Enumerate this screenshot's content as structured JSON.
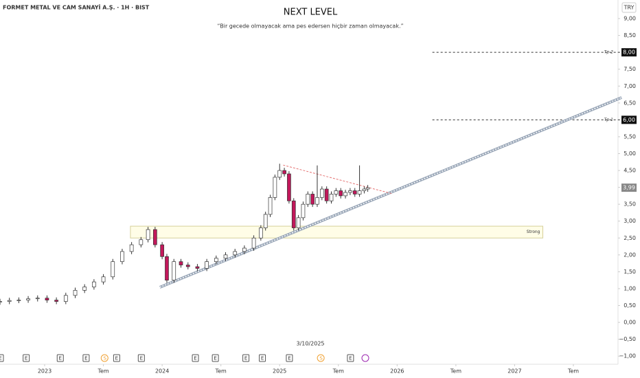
{
  "chart_data": {
    "type": "candlestick",
    "header": "FORMET METAL VE CAM SANAYİ A.Ş. · 1H · BIST",
    "title": "NEXT LEVEL",
    "subtitle": "“Bir gecede olmayacak ama pes edersen hiçbir zaman olmayacak.”",
    "currency": "TRY",
    "cursor_date": "3/10/2025",
    "up_color": "#ffffff",
    "down_color": "#c2185b",
    "edge_color": "#333333",
    "xlim": [
      2022.62,
      2027.88
    ],
    "ylim": [
      -1.24,
      9.55
    ],
    "xticks": [
      {
        "value": 2023,
        "label": "2023"
      },
      {
        "value": 2023.5,
        "label": "Tem"
      },
      {
        "value": 2024,
        "label": "2024"
      },
      {
        "value": 2024.5,
        "label": "Tem"
      },
      {
        "value": 2025,
        "label": "2025"
      },
      {
        "value": 2025.5,
        "label": "Tem"
      },
      {
        "value": 2026,
        "label": "2026"
      },
      {
        "value": 2026.5,
        "label": "Tem"
      },
      {
        "value": 2027,
        "label": "2027"
      },
      {
        "value": 2027.5,
        "label": "Tem"
      }
    ],
    "yticks": [
      {
        "value": 9,
        "label": "9,00"
      },
      {
        "value": 8.5,
        "label": "8,50"
      },
      {
        "value": 8,
        "label": "8,00"
      },
      {
        "value": 7.5,
        "label": "7,50"
      },
      {
        "value": 7,
        "label": "7,00"
      },
      {
        "value": 6.5,
        "label": "6,50"
      },
      {
        "value": 6,
        "label": "6,00"
      },
      {
        "value": 5.5,
        "label": "5,50"
      },
      {
        "value": 5,
        "label": "5,00"
      },
      {
        "value": 4.5,
        "label": "4,50"
      },
      {
        "value": 4,
        "label": "4,00"
      },
      {
        "value": 3.5,
        "label": "3,50"
      },
      {
        "value": 3,
        "label": "3,00"
      },
      {
        "value": 2.5,
        "label": "2,50"
      },
      {
        "value": 2,
        "label": "2,00"
      },
      {
        "value": 1.5,
        "label": "1,50"
      },
      {
        "value": 1,
        "label": "1,00"
      },
      {
        "value": 0.5,
        "label": "0,50"
      },
      {
        "value": 0,
        "label": "0,00"
      },
      {
        "value": -0.5,
        "label": "−0,50"
      },
      {
        "value": -1,
        "label": "−1,00"
      }
    ],
    "x": [
      2022.62,
      2022.7,
      2022.78,
      2022.86,
      2022.94,
      2023.02,
      2023.1,
      2023.18,
      2023.26,
      2023.34,
      2023.42,
      2023.5,
      2023.58,
      2023.66,
      2023.74,
      2023.82,
      2023.88,
      2023.94,
      2024.0,
      2024.04,
      2024.1,
      2024.16,
      2024.22,
      2024.3,
      2024.38,
      2024.46,
      2024.54,
      2024.62,
      2024.7,
      2024.78,
      2024.84,
      2024.88,
      2024.92,
      2024.96,
      2025.0,
      2025.04,
      2025.08,
      2025.12,
      2025.16,
      2025.2,
      2025.24,
      2025.28,
      2025.32,
      2025.36,
      2025.4,
      2025.44,
      2025.48,
      2025.52,
      2025.56,
      2025.6,
      2025.64,
      2025.68,
      2025.72,
      2025.75
    ],
    "open": [
      0.6,
      0.62,
      0.65,
      0.66,
      0.7,
      0.72,
      0.66,
      0.62,
      0.8,
      0.95,
      1.05,
      1.2,
      1.35,
      1.8,
      2.1,
      2.3,
      2.45,
      2.75,
      2.3,
      1.95,
      1.25,
      1.8,
      1.7,
      1.65,
      1.6,
      1.8,
      1.9,
      2.0,
      2.1,
      2.2,
      2.5,
      2.8,
      3.2,
      3.7,
      4.3,
      4.5,
      4.4,
      3.6,
      2.8,
      3.1,
      3.5,
      3.8,
      3.5,
      3.7,
      3.95,
      3.6,
      3.8,
      3.9,
      3.75,
      3.85,
      3.9,
      3.8,
      3.9,
      3.95
    ],
    "high": [
      0.7,
      0.73,
      0.74,
      0.78,
      0.8,
      0.8,
      0.74,
      0.88,
      1.03,
      1.13,
      1.28,
      1.43,
      1.88,
      2.18,
      2.38,
      2.53,
      2.83,
      2.83,
      2.38,
      2.03,
      1.88,
      1.88,
      1.78,
      1.73,
      1.88,
      1.98,
      2.08,
      2.18,
      2.28,
      2.58,
      2.88,
      3.28,
      3.78,
      4.38,
      4.7,
      4.58,
      4.48,
      3.68,
      3.18,
      3.58,
      3.88,
      3.88,
      4.65,
      4.03,
      4.03,
      3.88,
      3.98,
      3.98,
      3.93,
      3.98,
      3.98,
      4.65,
      4.03,
      4.07
    ],
    "low": [
      0.52,
      0.54,
      0.57,
      0.58,
      0.62,
      0.58,
      0.54,
      0.54,
      0.72,
      0.87,
      0.97,
      1.12,
      1.27,
      1.72,
      2.02,
      2.22,
      2.37,
      2.22,
      1.87,
      1.17,
      1.17,
      1.62,
      1.57,
      1.52,
      1.52,
      1.72,
      1.82,
      1.92,
      2.02,
      2.12,
      2.42,
      2.72,
      3.12,
      3.62,
      4.22,
      4.32,
      3.52,
      2.72,
      2.72,
      3.02,
      3.42,
      3.42,
      3.42,
      3.62,
      3.52,
      3.52,
      3.72,
      3.67,
      3.67,
      3.77,
      3.72,
      3.72,
      3.82,
      3.87
    ],
    "close": [
      0.62,
      0.65,
      0.66,
      0.7,
      0.72,
      0.66,
      0.62,
      0.8,
      0.95,
      1.05,
      1.2,
      1.35,
      1.8,
      2.1,
      2.3,
      2.45,
      2.75,
      2.3,
      1.95,
      1.25,
      1.8,
      1.7,
      1.65,
      1.6,
      1.8,
      1.9,
      2.0,
      2.1,
      2.2,
      2.5,
      2.8,
      3.2,
      3.7,
      4.3,
      4.5,
      4.4,
      3.6,
      2.8,
      3.1,
      3.5,
      3.8,
      3.5,
      3.7,
      3.95,
      3.6,
      3.8,
      3.9,
      3.75,
      3.85,
      3.9,
      3.8,
      3.9,
      3.95,
      3.99
    ],
    "last_price": {
      "value": 3.99,
      "label": "3,99"
    },
    "levels": [
      {
        "name": "Tp 2",
        "value": 8,
        "label": "8,00",
        "x": 2026.3
      },
      {
        "name": "Tp 1",
        "value": 6,
        "label": "6,00",
        "x": 2026.3
      }
    ],
    "zone": {
      "label": "Strong",
      "range": [
        2.5,
        2.85
      ],
      "x": [
        2023.73,
        2027.24
      ]
    },
    "trend_line": {
      "x": [
        2023.98,
        2027.91
      ],
      "y": [
        1.04,
        6.66
      ]
    },
    "resistance_line": {
      "x": [
        2025.03,
        2025.96
      ],
      "y": [
        4.66,
        3.81
      ]
    },
    "events": [
      {
        "x": 2022.62,
        "label": "E"
      },
      {
        "x": 2022.84,
        "label": "E"
      },
      {
        "x": 2023.13,
        "label": "E"
      },
      {
        "x": 2023.35,
        "label": "E"
      },
      {
        "x": 2023.51,
        "label": "S"
      },
      {
        "x": 2023.61,
        "label": "E"
      },
      {
        "x": 2023.82,
        "label": "E"
      },
      {
        "x": 2024.28,
        "label": "E"
      },
      {
        "x": 2024.45,
        "label": "E"
      },
      {
        "x": 2024.71,
        "label": "E"
      },
      {
        "x": 2024.85,
        "label": "E"
      },
      {
        "x": 2025.08,
        "label": "E"
      },
      {
        "x": 2025.35,
        "label": "S"
      },
      {
        "x": 2025.6,
        "label": "E"
      }
    ]
  }
}
